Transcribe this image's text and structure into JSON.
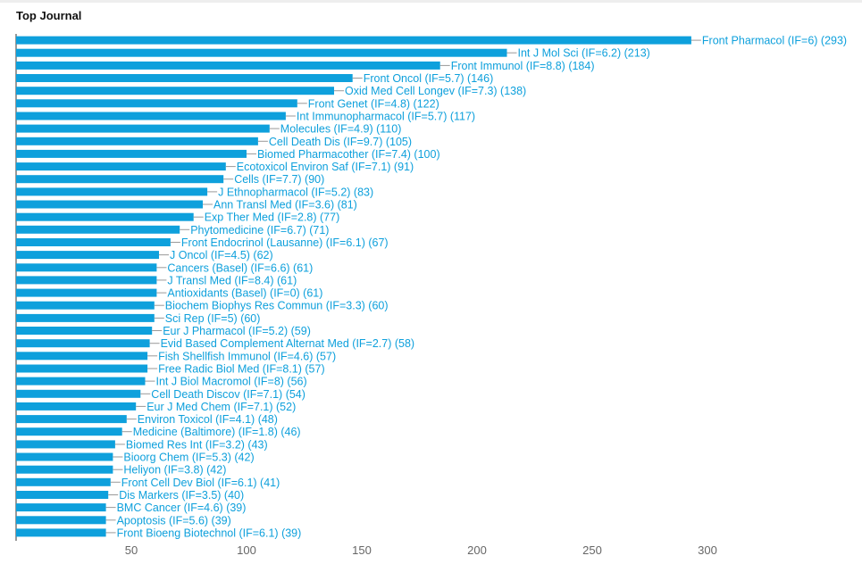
{
  "panel": {
    "title": "Top Journal"
  },
  "chart_data": {
    "type": "bar",
    "orientation": "horizontal",
    "title": "Top Journal",
    "xlabel": "",
    "ylabel": "",
    "xlim": [
      0,
      300
    ],
    "x_ticks": [
      50,
      100,
      150,
      200,
      250,
      300
    ],
    "grid": false,
    "legend": "none",
    "bar_color": "#0ea0dc",
    "categories": [
      "Front Pharmacol (IF=6)",
      "Int J Mol Sci (IF=6.2)",
      "Front Immunol (IF=8.8)",
      "Front Oncol (IF=5.7)",
      "Oxid Med Cell Longev (IF=7.3)",
      "Front Genet (IF=4.8)",
      "Int Immunopharmacol (IF=5.7)",
      "Molecules (IF=4.9)",
      "Cell Death Dis (IF=9.7)",
      "Biomed Pharmacother (IF=7.4)",
      "Ecotoxicol Environ Saf (IF=7.1)",
      "Cells (IF=7.7)",
      "J Ethnopharmacol (IF=5.2)",
      "Ann Transl Med (IF=3.6)",
      "Exp Ther Med (IF=2.8)",
      "Phytomedicine (IF=6.7)",
      "Front Endocrinol (Lausanne) (IF=6.1)",
      "J Oncol (IF=4.5)",
      "Cancers (Basel) (IF=6.6)",
      "J Transl Med (IF=8.4)",
      "Antioxidants (Basel) (IF=0)",
      "Biochem Biophys Res Commun (IF=3.3)",
      "Sci Rep (IF=5)",
      "Eur J Pharmacol (IF=5.2)",
      "Evid Based Complement Alternat Med (IF=2.7)",
      "Fish Shellfish Immunol (IF=4.6)",
      "Free Radic Biol Med (IF=8.1)",
      "Int J Biol Macromol (IF=8)",
      "Cell Death Discov (IF=7.1)",
      "Eur J Med Chem (IF=7.1)",
      "Environ Toxicol (IF=4.1)",
      "Medicine (Baltimore) (IF=1.8)",
      "Biomed Res Int (IF=3.2)",
      "Bioorg Chem (IF=5.3)",
      "Heliyon (IF=3.8)",
      "Front Cell Dev Biol (IF=6.1)",
      "Dis Markers (IF=3.5)",
      "BMC Cancer (IF=4.6)",
      "Apoptosis (IF=5.6)",
      "Front Bioeng Biotechnol (IF=6.1)"
    ],
    "values": [
      293,
      213,
      184,
      146,
      138,
      122,
      117,
      110,
      105,
      100,
      91,
      90,
      83,
      81,
      77,
      71,
      67,
      62,
      61,
      61,
      61,
      60,
      60,
      59,
      58,
      57,
      57,
      56,
      54,
      52,
      48,
      46,
      43,
      42,
      42,
      41,
      40,
      39,
      39,
      39
    ]
  }
}
